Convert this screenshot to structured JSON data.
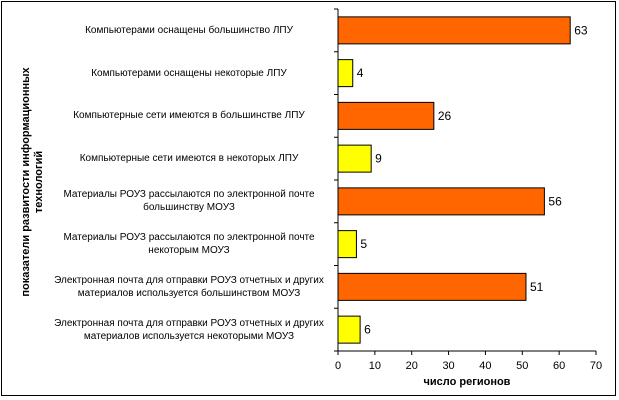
{
  "chart_data": {
    "type": "bar",
    "orientation": "horizontal",
    "categories": [
      "Компьютерами оснащены большинство ЛПУ",
      "Компьютерами оснащены некоторые ЛПУ",
      "Компьютерные сети имеются  в большинстве ЛПУ",
      "Компьютерные сети имеются  в некоторых ЛПУ",
      "Материалы РОУЗ рассылаются по электронной почте большинству МОУЗ",
      "Материалы РОУЗ рассылаются по электронной почте некоторым МОУЗ",
      "Электронная почта для отправки РОУЗ отчетных и других материалов используется большинством МОУЗ",
      "Электронная почта для отправки РОУЗ отчетных и других материалов используется некоторыми МОУЗ"
    ],
    "values": [
      63,
      4,
      26,
      9,
      56,
      5,
      51,
      6
    ],
    "bar_colors": [
      "#FF6600",
      "#FFFF00",
      "#FF6600",
      "#FFFF00",
      "#FF6600",
      "#FFFF00",
      "#FF6600",
      "#FFFF00"
    ],
    "data_labels": [
      "63",
      "4",
      "26",
      "9",
      "56",
      "5",
      "51",
      "6"
    ],
    "xlabel": "число  регионов",
    "ylabel": "показатели развитости  информационных технологий",
    "xlim": [
      0,
      70
    ],
    "xticks": [
      "0",
      "10",
      "20",
      "30",
      "40",
      "50",
      "60",
      "70"
    ],
    "grid": false,
    "legend": "none"
  }
}
